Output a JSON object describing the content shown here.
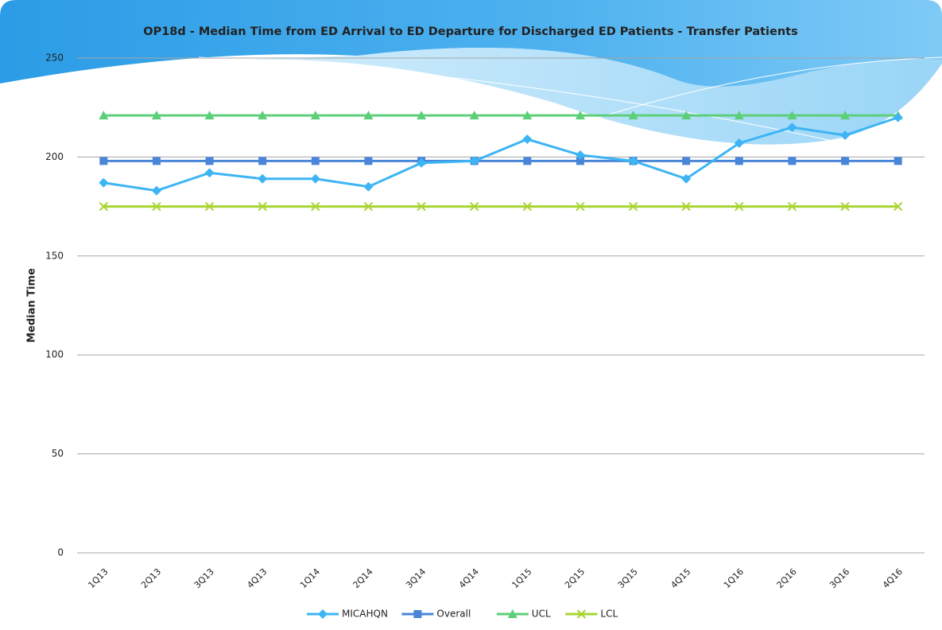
{
  "chart_data": {
    "type": "line",
    "title": "OP18d - Median Time from ED Arrival to ED Departure for Discharged ED Patients - Transfer Patients",
    "y_label": "Median Time",
    "categories": [
      "1Q13",
      "2Q13",
      "3Q13",
      "4Q13",
      "1Q14",
      "2Q14",
      "3Q14",
      "4Q14",
      "1Q15",
      "2Q15",
      "3Q15",
      "4Q15",
      "1Q16",
      "2Q16",
      "3Q16",
      "4Q16"
    ],
    "series": [
      {
        "name": "MICAHQN",
        "color": "#3db5f4",
        "marker": "diamond",
        "values": [
          187,
          183,
          192,
          189,
          189,
          185,
          197,
          198,
          209,
          201,
          198,
          189,
          207,
          215,
          211,
          220
        ]
      },
      {
        "name": "Overall",
        "color": "#4a86d8",
        "marker": "square",
        "values": [
          198,
          198,
          198,
          198,
          198,
          198,
          198,
          198,
          198,
          198,
          198,
          198,
          198,
          198,
          198,
          198
        ]
      },
      {
        "name": "UCL",
        "color": "#5ccf78",
        "marker": "triangle",
        "values": [
          221,
          221,
          221,
          221,
          221,
          221,
          221,
          221,
          221,
          221,
          221,
          221,
          221,
          221,
          221,
          221
        ]
      },
      {
        "name": "LCL",
        "color": "#a8d433",
        "marker": "x",
        "values": [
          175,
          175,
          175,
          175,
          175,
          175,
          175,
          175,
          175,
          175,
          175,
          175,
          175,
          175,
          175,
          175
        ]
      }
    ],
    "ylim": [
      0,
      250
    ],
    "yticks": [
      0,
      50,
      100,
      150,
      200,
      250
    ],
    "grid": true
  }
}
